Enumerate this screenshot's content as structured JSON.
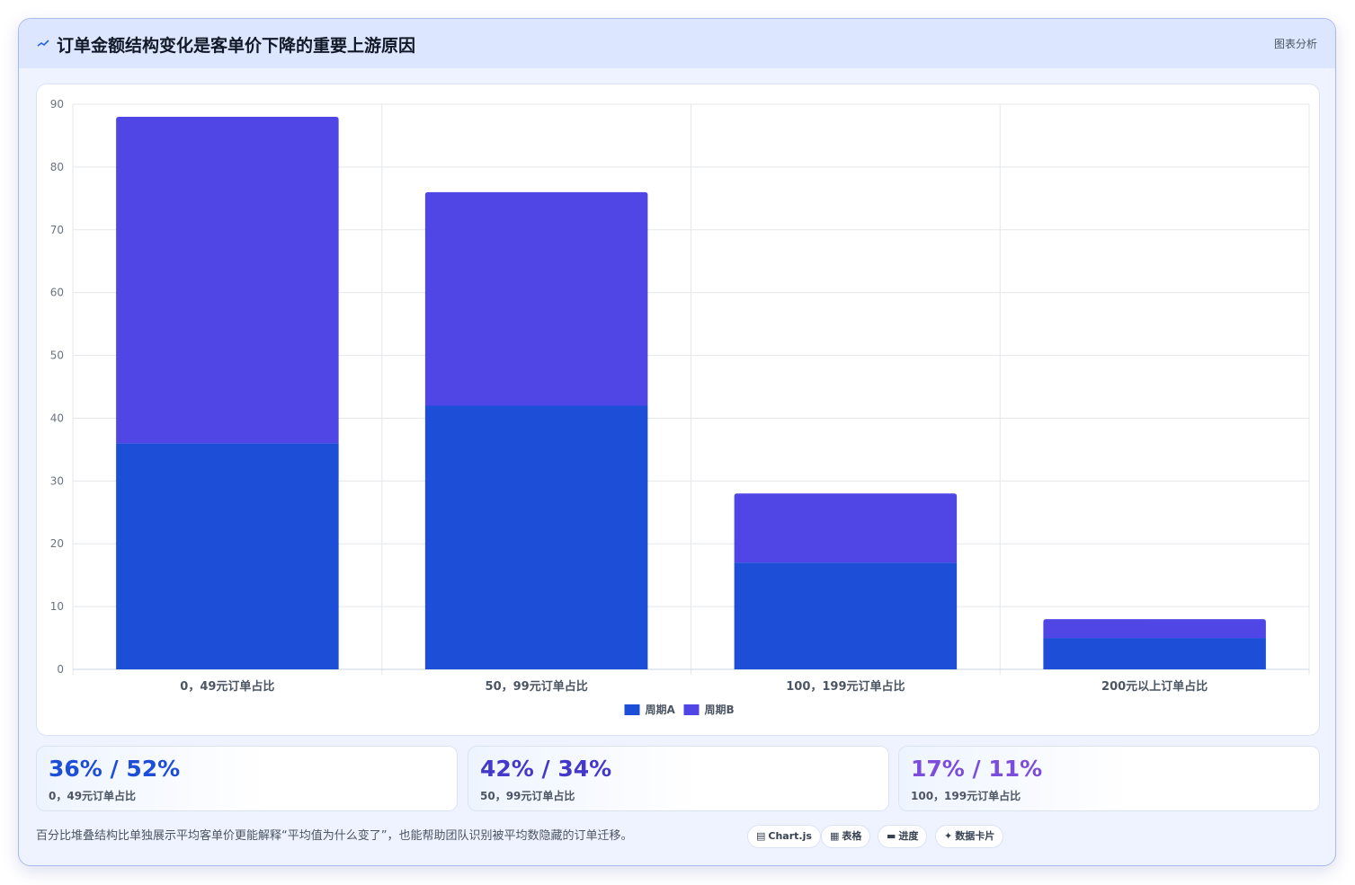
{
  "header": {
    "title": "订单金额结构变化是客单价下降的重要上游原因",
    "tag": "图表分析",
    "icon": "trend-line-icon"
  },
  "chart_data": {
    "type": "bar",
    "stacked": true,
    "categories": [
      "0，49元订单占比",
      "50，99元订单占比",
      "100，199元订单占比",
      "200元以上订单占比"
    ],
    "series": [
      {
        "name": "周期A",
        "values": [
          36,
          42,
          17,
          5
        ],
        "color": "#1d4ed8"
      },
      {
        "name": "周期B",
        "values": [
          52,
          34,
          11,
          3
        ],
        "color": "#4f46e5"
      }
    ],
    "ylim": [
      0,
      90
    ],
    "yticks": [
      0,
      10,
      20,
      30,
      40,
      50,
      60,
      70,
      80,
      90
    ],
    "grid": true,
    "legend": "bottom"
  },
  "stats": [
    {
      "value": "36% / 52%",
      "label": "0，49元订单占比",
      "color": "#1d4ed8"
    },
    {
      "value": "42% / 34%",
      "label": "50，99元订单占比",
      "color": "#4338ca"
    },
    {
      "value": "17% / 11%",
      "label": "100，199元订单占比",
      "color": "#7c4ddb"
    }
  ],
  "footer": {
    "text": "百分比堆叠结构比单独展示平均客单价更能解释“平均值为什么变了”，也能帮助团队识别被平均数隐藏的订单迁移。"
  },
  "chips": [
    {
      "label": "Chart.js",
      "icon": "chart-icon"
    },
    {
      "label": "表格",
      "icon": "table-icon"
    },
    {
      "label": "进度",
      "icon": "progress-icon"
    },
    {
      "label": "数据卡片",
      "icon": "sparkle-icon"
    }
  ]
}
